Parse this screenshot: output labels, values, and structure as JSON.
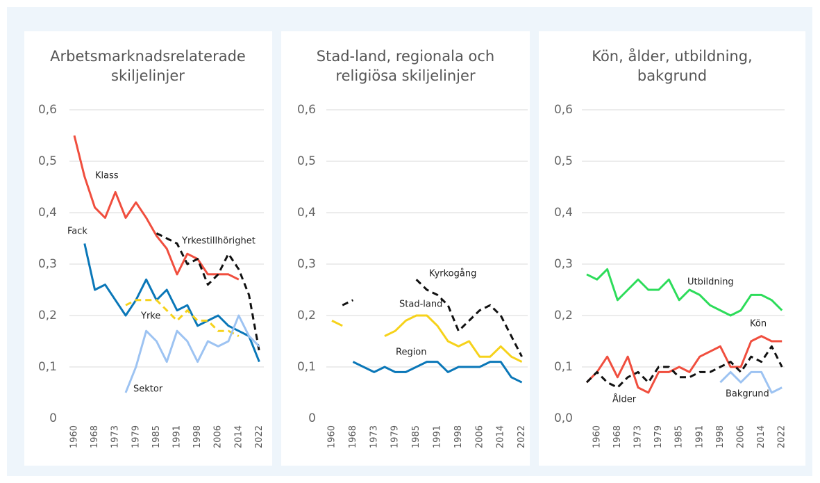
{
  "chart_data": [
    {
      "type": "line",
      "title": [
        "Arbetsmarknadsrelaterade",
        "skiljelinjer"
      ],
      "categories": [
        "1960",
        null,
        "1968",
        null,
        "1973",
        null,
        "1979",
        null,
        "1985",
        null,
        "1991",
        null,
        "1998",
        null,
        "2006",
        null,
        "2014",
        null,
        "2022"
      ],
      "ylim": [
        0,
        0.6
      ],
      "yticks": [
        0,
        {
          "value": 0.1,
          "label": "0,1"
        },
        {
          "value": 0.2,
          "label": "0,2"
        },
        {
          "value": 0.3,
          "label": "0,3"
        },
        {
          "value": 0.4,
          "label": "0,4"
        },
        {
          "value": 0.5,
          "label": "0,5"
        },
        {
          "value": 0.6,
          "label": "0,6"
        }
      ],
      "grid": true,
      "series": [
        {
          "name": "Klass",
          "color": "#f04e3e",
          "values": [
            0.55,
            0.47,
            0.41,
            0.39,
            0.44,
            0.39,
            0.42,
            0.39,
            0.355,
            0.33,
            0.28,
            0.32,
            0.31,
            0.28,
            0.28,
            0.28,
            0.27,
            null,
            null
          ]
        },
        {
          "name": "Fack",
          "color": "#0a77b8",
          "values": [
            null,
            0.34,
            0.25,
            0.26,
            0.23,
            0.2,
            0.23,
            0.27,
            0.23,
            0.25,
            0.21,
            0.22,
            0.18,
            0.19,
            0.2,
            0.18,
            0.17,
            0.16,
            0.11
          ]
        },
        {
          "name": "Yrkestillhörighet",
          "color": "#111111",
          "dash": true,
          "values": [
            null,
            null,
            null,
            null,
            null,
            null,
            null,
            null,
            0.36,
            0.35,
            0.34,
            0.3,
            0.31,
            0.26,
            0.28,
            0.32,
            0.29,
            0.24,
            0.13
          ]
        },
        {
          "name": "Yrke",
          "color": "#f6d21b",
          "dash": true,
          "values": [
            null,
            null,
            null,
            null,
            null,
            0.22,
            0.23,
            0.23,
            0.23,
            0.21,
            0.19,
            0.21,
            0.19,
            0.19,
            0.17,
            0.17,
            0.16,
            null,
            null
          ]
        },
        {
          "name": "Sektor",
          "color": "#9dc3f2",
          "values": [
            null,
            null,
            null,
            null,
            null,
            0.05,
            0.1,
            0.17,
            0.15,
            0.11,
            0.17,
            0.15,
            0.11,
            0.15,
            0.14,
            0.15,
            0.2,
            0.16,
            0.14
          ]
        }
      ]
    },
    {
      "type": "line",
      "title": [
        "Stad-land, regionala och",
        "religiösa skiljelinjer"
      ],
      "categories": [
        "1960",
        null,
        "1968",
        null,
        "1973",
        null,
        "1979",
        null,
        "1985",
        null,
        "1991",
        null,
        "1998",
        null,
        "2006",
        null,
        "2014",
        null,
        "2022"
      ],
      "ylim": [
        0,
        0.6
      ],
      "yticks": [
        0,
        {
          "value": 0.1,
          "label": "0,1"
        },
        {
          "value": 0.2,
          "label": "0,2"
        },
        {
          "value": 0.3,
          "label": "0,3"
        },
        {
          "value": 0.4,
          "label": "0,4"
        },
        {
          "value": 0.5,
          "label": "0,5"
        },
        {
          "value": 0.6,
          "label": "0,6"
        }
      ],
      "grid": true,
      "series": [
        {
          "name": "Kyrkogång",
          "color": "#111111",
          "dash": true,
          "values": [
            null,
            0.22,
            0.23,
            null,
            null,
            null,
            null,
            null,
            0.27,
            0.25,
            0.24,
            0.22,
            0.17,
            0.19,
            0.21,
            0.22,
            0.2,
            0.16,
            0.12
          ]
        },
        {
          "name": "Stad-land",
          "color": "#f6d21b",
          "values": [
            0.19,
            0.18,
            null,
            null,
            null,
            0.16,
            0.17,
            0.19,
            0.2,
            0.2,
            0.18,
            0.15,
            0.14,
            0.15,
            0.12,
            0.12,
            0.14,
            0.12,
            0.11
          ]
        },
        {
          "name": "Region",
          "color": "#0a77b8",
          "values": [
            null,
            null,
            0.11,
            0.1,
            0.09,
            0.1,
            0.09,
            0.09,
            0.1,
            0.11,
            0.11,
            0.09,
            0.1,
            0.1,
            0.1,
            0.11,
            0.11,
            0.08,
            0.07
          ]
        }
      ]
    },
    {
      "type": "line",
      "title": [
        "Kön, ålder, utbildning,",
        "bakgrund"
      ],
      "categories": [
        null,
        "1960",
        null,
        "1968",
        null,
        "1973",
        null,
        "1979",
        null,
        "1985",
        null,
        "1991",
        null,
        "1998",
        null,
        "2006",
        null,
        "2014",
        null,
        "2022"
      ],
      "ylim": [
        0,
        0.6
      ],
      "yticks": [
        {
          "value": 0,
          "label": "0,0"
        },
        {
          "value": 0.1,
          "label": "0,1"
        },
        {
          "value": 0.2,
          "label": "0,2"
        },
        {
          "value": 0.3,
          "label": "0,3"
        },
        {
          "value": 0.4,
          "label": "0,4"
        },
        {
          "value": 0.5,
          "label": "0,5"
        },
        {
          "value": 0.6,
          "label": "0,6"
        }
      ],
      "grid": true,
      "series": [
        {
          "name": "Utbildning",
          "color": "#2ddc5a",
          "values": [
            0.28,
            0.27,
            0.29,
            0.23,
            0.25,
            0.27,
            0.25,
            0.25,
            0.27,
            0.23,
            0.25,
            0.24,
            0.22,
            0.21,
            0.2,
            0.21,
            0.24,
            0.24,
            0.23,
            0.21
          ]
        },
        {
          "name": "Kön",
          "color": "#f04e3e",
          "values": [
            0.07,
            0.09,
            0.12,
            0.08,
            0.12,
            0.06,
            0.05,
            0.09,
            0.09,
            0.1,
            0.09,
            0.12,
            0.13,
            0.14,
            0.1,
            0.1,
            0.15,
            0.16,
            0.15,
            0.15
          ]
        },
        {
          "name": "Ålder",
          "color": "#111111",
          "dash": true,
          "values": [
            0.07,
            0.09,
            0.07,
            0.06,
            0.08,
            0.09,
            0.07,
            0.1,
            0.1,
            0.08,
            0.08,
            0.09,
            0.09,
            0.1,
            0.11,
            0.09,
            0.12,
            0.11,
            0.14,
            0.1
          ]
        },
        {
          "name": "Bakgrund",
          "color": "#9dc3f2",
          "values": [
            null,
            null,
            null,
            null,
            null,
            null,
            null,
            null,
            null,
            null,
            null,
            null,
            null,
            0.07,
            0.09,
            0.07,
            0.09,
            0.09,
            0.05,
            0.06
          ]
        }
      ]
    }
  ]
}
